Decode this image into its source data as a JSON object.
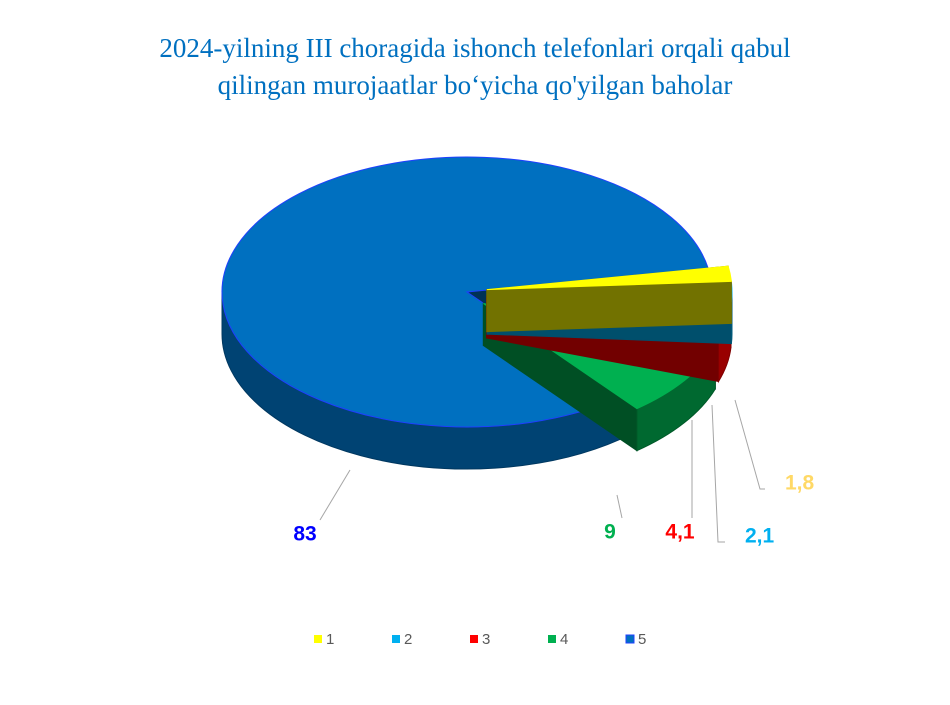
{
  "chart_data": {
    "type": "pie3d",
    "title": "2024-yilning III choragida ishonch telefonlari orqali qabul qilingan murojaatlar bo‘yicha qo'yilgan baholar",
    "categories": [
      "1",
      "2",
      "3",
      "4",
      "5"
    ],
    "values": [
      1.8,
      2.1,
      4.1,
      9,
      83
    ],
    "value_labels": [
      "1,8",
      "2,1",
      "4,1",
      "9",
      "83"
    ],
    "colors": [
      "#ffff00",
      "#00b0f0",
      "#ff0000",
      "#00b050",
      "#0070c0"
    ],
    "legend": "bottom"
  }
}
